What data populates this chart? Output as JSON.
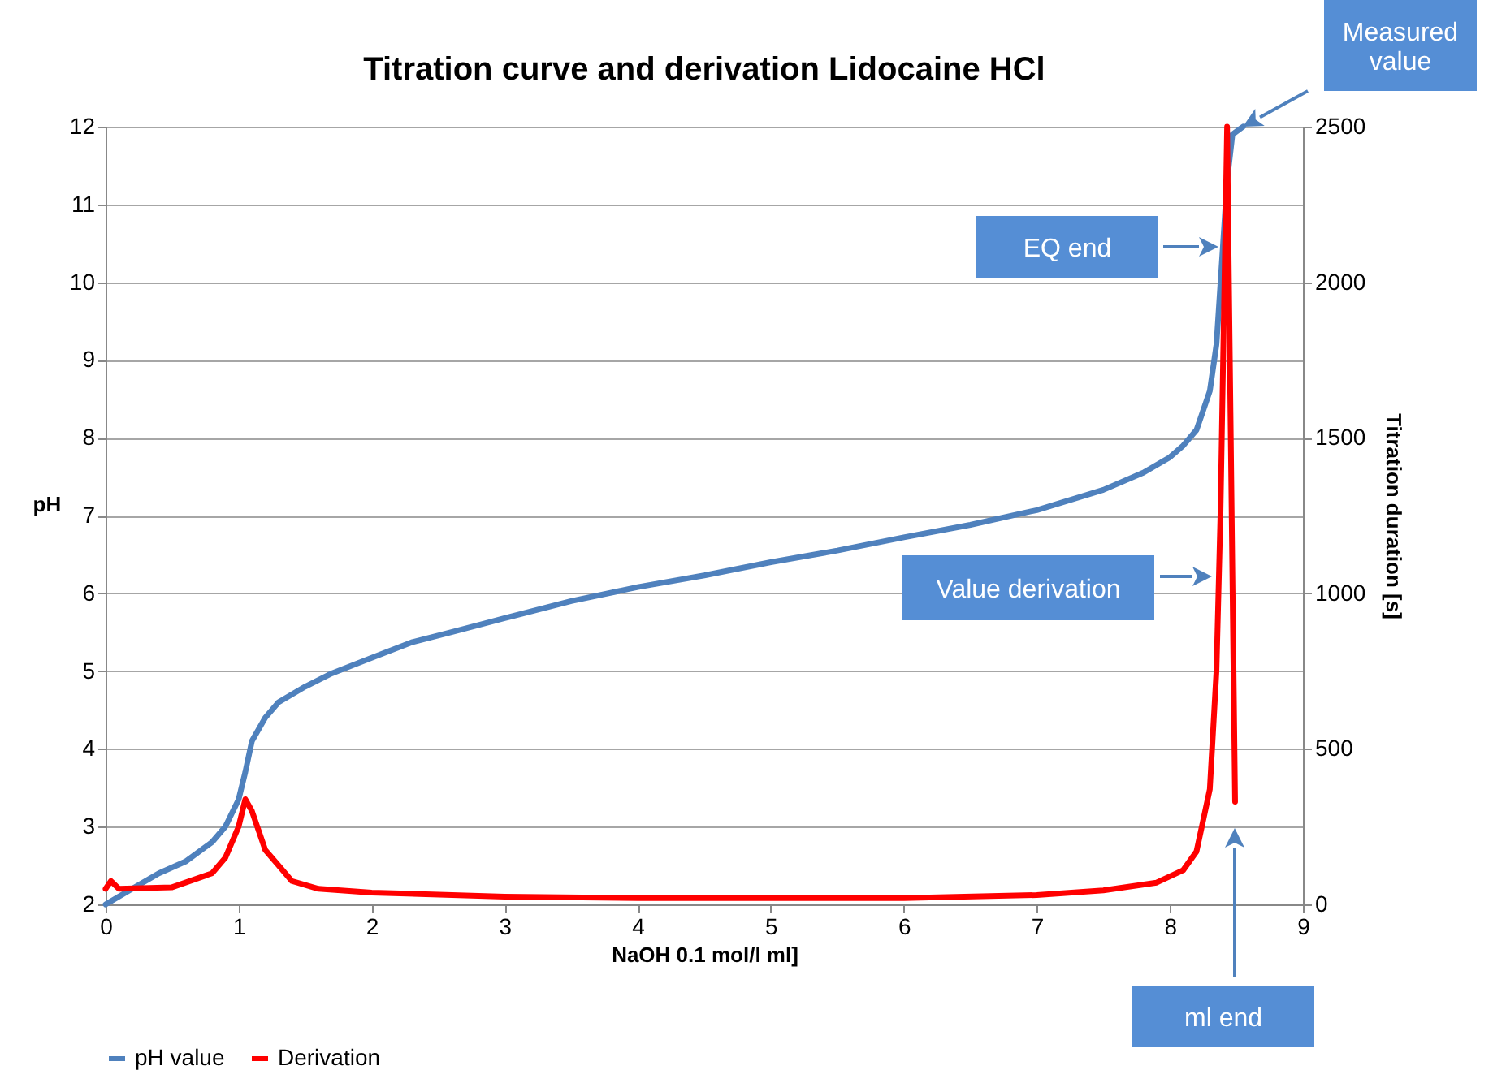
{
  "chart_data": {
    "type": "line",
    "title": "Titration curve and derivation Lidocaine HCl",
    "xlabel": "NaOH 0.1 mol/l ml]",
    "ylabel": "pH",
    "y2label": "Titration duration [s]",
    "xlim": [
      0,
      9
    ],
    "xticks": [
      0,
      1,
      2,
      3,
      4,
      5,
      6,
      7,
      8,
      9
    ],
    "ylim": [
      2,
      12
    ],
    "yticks": [
      2,
      3,
      4,
      5,
      6,
      7,
      8,
      9,
      10,
      11,
      12
    ],
    "y2lim": [
      0,
      2500
    ],
    "y2ticks": [
      0,
      500,
      1000,
      1500,
      2000,
      2500
    ],
    "grid": "y",
    "legend": "bottom",
    "line_style": "solid",
    "marker": "none",
    "series": [
      {
        "name": "pH value",
        "color": "#4f81bd",
        "x": [
          0,
          0.2,
          0.4,
          0.6,
          0.8,
          0.9,
          1.0,
          1.05,
          1.1,
          1.2,
          1.3,
          1.5,
          1.7,
          2.0,
          2.3,
          2.6,
          3.0,
          3.5,
          4.0,
          4.5,
          5.0,
          5.5,
          6.0,
          6.5,
          7.0,
          7.5,
          7.8,
          8.0,
          8.1,
          8.2,
          8.3,
          8.35,
          8.4,
          8.43,
          8.47,
          8.55
        ],
        "values": [
          2.0,
          2.2,
          2.4,
          2.55,
          2.8,
          3.0,
          3.35,
          3.7,
          4.1,
          4.4,
          4.6,
          4.8,
          4.97,
          5.17,
          5.37,
          5.5,
          5.68,
          5.9,
          6.08,
          6.23,
          6.4,
          6.55,
          6.72,
          6.88,
          7.07,
          7.33,
          7.55,
          7.75,
          7.9,
          8.1,
          8.6,
          9.2,
          10.5,
          11.3,
          11.9,
          12.0
        ]
      },
      {
        "name": "Derivation",
        "color": "#ff0000",
        "axis": "y2",
        "x": [
          0,
          0.04,
          0.1,
          0.5,
          0.8,
          0.9,
          1.0,
          1.05,
          1.1,
          1.2,
          1.3,
          1.4,
          1.6,
          2.0,
          3.0,
          4.0,
          6.0,
          7.0,
          7.5,
          7.9,
          8.1,
          8.2,
          8.3,
          8.35,
          8.38,
          8.43,
          8.49
        ],
        "values": [
          50,
          75,
          50,
          55,
          100,
          150,
          250,
          338,
          300,
          175,
          125,
          75,
          50,
          38,
          25,
          20,
          20,
          30,
          45,
          70,
          110,
          170,
          370,
          750,
          1250,
          2500,
          330
        ]
      }
    ],
    "annotations": [
      "Measured value",
      "EQ end",
      "Value derivation",
      "ml end"
    ]
  }
}
